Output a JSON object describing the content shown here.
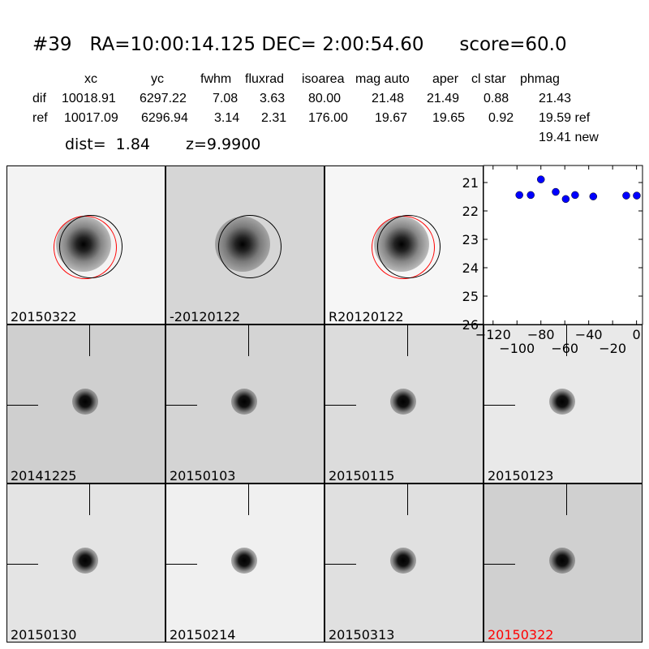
{
  "header": {
    "title": "#39   RA=10:00:14.125 DEC= 2:00:54.60      score=60.0",
    "columns": [
      "xc",
      "yc",
      "fwhm",
      "fluxrad",
      "isoarea",
      "mag auto",
      "aper",
      "cl star",
      "phmag"
    ],
    "dif": {
      "label": "dif",
      "values": [
        "10018.91",
        "6297.22",
        "7.08",
        "3.63",
        "80.00",
        "21.48",
        "21.49",
        "0.88",
        "21.43"
      ]
    },
    "ref": {
      "label": "ref",
      "values": [
        "10017.09",
        "6296.94",
        "3.14",
        "2.31",
        "176.00",
        "19.67",
        "19.65",
        "0.92",
        "19.59 ref"
      ]
    },
    "new_phmag": "19.41 new",
    "dist": "dist=  1.84",
    "z": "z=9.9900"
  },
  "stamps": [
    {
      "label": "20150322",
      "bg": "#f3f3f3",
      "circles": true
    },
    {
      "label": "-20120122",
      "bg": "#d6d6d6",
      "circles": true,
      "single": true
    },
    {
      "label": "R20120122",
      "bg": "#f6f6f6",
      "circles": true
    },
    {
      "label": "20141225",
      "bg": "#cfcfcf"
    },
    {
      "label": "20150103",
      "bg": "#d4d4d4"
    },
    {
      "label": "20150115",
      "bg": "#dcdcdc"
    },
    {
      "label": "20150123",
      "bg": "#e9e9e9"
    },
    {
      "label": "20150130",
      "bg": "#e4e4e4"
    },
    {
      "label": "20150214",
      "bg": "#f0f0f0"
    },
    {
      "label": "20150313",
      "bg": "#e0e0e0"
    },
    {
      "label": "20150322",
      "bg": "#d0d0d0",
      "label_color": "#ff0000"
    }
  ],
  "colors": {
    "point": "#0000ff",
    "circle_ref": "#ff0000",
    "circle_new": "#000000"
  },
  "chart_data": {
    "type": "scatter",
    "x": [
      -98,
      -88.5,
      -80,
      -67.6,
      -59.2,
      -51.4,
      -36.2,
      -8.6,
      0.2
    ],
    "y": [
      21.44,
      21.44,
      20.89,
      21.33,
      21.58,
      21.44,
      21.49,
      21.46,
      21.46
    ],
    "xlim": [
      -128,
      5
    ],
    "ylim": [
      26,
      20.4
    ],
    "y_inverted": true,
    "xticks": [
      -120,
      -100,
      -80,
      -60,
      -40,
      -20,
      0
    ],
    "xtick_labels": [
      "−120",
      "−100",
      "−80",
      "−60",
      "−40",
      "−20",
      "0"
    ],
    "yticks": [
      21,
      22,
      23,
      24,
      25,
      26
    ],
    "ytick_labels": [
      "21",
      "22",
      "23",
      "24",
      "25",
      "26"
    ],
    "grid": false
  }
}
